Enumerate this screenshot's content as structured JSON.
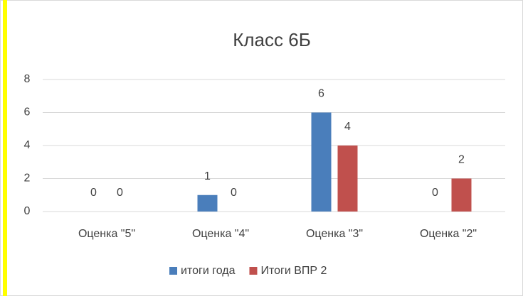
{
  "chart_data": {
    "type": "bar",
    "title": "Класс 6Б",
    "categories": [
      "Оценка \"5\"",
      "Оценка \"4\"",
      "Оценка \"3\"",
      "Оценка \"2\""
    ],
    "series": [
      {
        "name": "итоги года",
        "color": "#4a7ebb",
        "values": [
          0,
          1,
          6,
          0
        ]
      },
      {
        "name": "Итоги ВПР 2",
        "color": "#c0504d",
        "values": [
          0,
          0,
          4,
          2
        ]
      }
    ],
    "ylim": [
      0,
      8
    ],
    "yticks": [
      0,
      2,
      4,
      6,
      8
    ],
    "grid": true,
    "legend": "bottom"
  }
}
